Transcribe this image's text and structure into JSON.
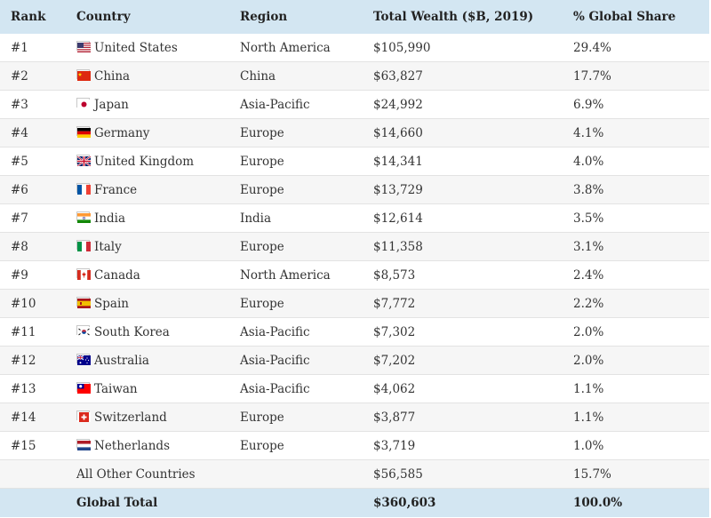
{
  "headers": {
    "rank": "Rank",
    "country": "Country",
    "region": "Region",
    "wealth": "Total Wealth ($B, 2019)",
    "share": "% Global Share"
  },
  "rows": [
    {
      "rank": "#1",
      "flag": "us",
      "country": "United States",
      "region": "North America",
      "wealth": "$105,990",
      "share": "29.4%"
    },
    {
      "rank": "#2",
      "flag": "cn",
      "country": "China",
      "region": "China",
      "wealth": "$63,827",
      "share": "17.7%"
    },
    {
      "rank": "#3",
      "flag": "jp",
      "country": "Japan",
      "region": "Asia-Pacific",
      "wealth": "$24,992",
      "share": "6.9%"
    },
    {
      "rank": "#4",
      "flag": "de",
      "country": "Germany",
      "region": "Europe",
      "wealth": "$14,660",
      "share": "4.1%"
    },
    {
      "rank": "#5",
      "flag": "gb",
      "country": "United Kingdom",
      "region": "Europe",
      "wealth": "$14,341",
      "share": "4.0%"
    },
    {
      "rank": "#6",
      "flag": "fr",
      "country": "France",
      "region": "Europe",
      "wealth": "$13,729",
      "share": "3.8%"
    },
    {
      "rank": "#7",
      "flag": "in",
      "country": "India",
      "region": "India",
      "wealth": "$12,614",
      "share": "3.5%"
    },
    {
      "rank": "#8",
      "flag": "it",
      "country": "Italy",
      "region": "Europe",
      "wealth": "$11,358",
      "share": "3.1%"
    },
    {
      "rank": "#9",
      "flag": "ca",
      "country": "Canada",
      "region": "North America",
      "wealth": "$8,573",
      "share": "2.4%"
    },
    {
      "rank": "#10",
      "flag": "es",
      "country": "Spain",
      "region": "Europe",
      "wealth": "$7,772",
      "share": "2.2%"
    },
    {
      "rank": "#11",
      "flag": "kr",
      "country": "South Korea",
      "region": "Asia-Pacific",
      "wealth": "$7,302",
      "share": "2.0%"
    },
    {
      "rank": "#12",
      "flag": "au",
      "country": "Australia",
      "region": "Asia-Pacific",
      "wealth": "$7,202",
      "share": "2.0%"
    },
    {
      "rank": "#13",
      "flag": "tw",
      "country": "Taiwan",
      "region": "Asia-Pacific",
      "wealth": "$4,062",
      "share": "1.1%"
    },
    {
      "rank": "#14",
      "flag": "ch",
      "country": "Switzerland",
      "region": "Europe",
      "wealth": "$3,877",
      "share": "1.1%"
    },
    {
      "rank": "#15",
      "flag": "nl",
      "country": "Netherlands",
      "region": "Europe",
      "wealth": "$3,719",
      "share": "1.0%"
    }
  ],
  "others": {
    "country": "All Other Countries",
    "wealth": "$56,585",
    "share": "15.7%"
  },
  "total": {
    "country": "Global Total",
    "wealth": "$360,603",
    "share": "100.0%"
  }
}
